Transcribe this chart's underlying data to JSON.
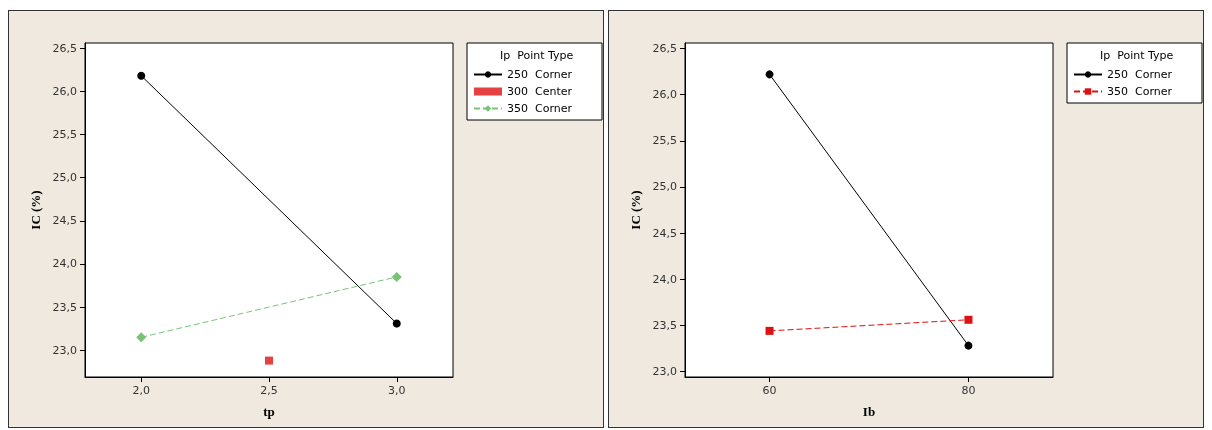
{
  "chart_data": [
    {
      "type": "line",
      "xlabel": "tp",
      "ylabel": "IC (%)",
      "legend_title": "Ip  Point Type",
      "legend": "top right",
      "grid": false,
      "xlim": [
        1.78,
        3.22
      ],
      "xticks": [
        {
          "value": 2.0,
          "label": "2,0"
        },
        {
          "value": 2.5,
          "label": "2,5"
        },
        {
          "value": 3.0,
          "label": "3,0"
        }
      ],
      "ylim": [
        22.69,
        26.56
      ],
      "yticks": [
        {
          "value": 23.0,
          "label": "23,0"
        },
        {
          "value": 23.5,
          "label": "23,5"
        },
        {
          "value": 24.0,
          "label": "24,0"
        },
        {
          "value": 24.5,
          "label": "24,5"
        },
        {
          "value": 25.0,
          "label": "25,0"
        },
        {
          "value": 25.5,
          "label": "25,5"
        },
        {
          "value": 26.0,
          "label": "26,0"
        },
        {
          "value": 26.5,
          "label": "26,5"
        }
      ],
      "series": [
        {
          "name": "250  Corner",
          "color": "#000000",
          "marker": "circle",
          "line_style": "solid",
          "x": [
            2.0,
            3.0
          ],
          "values": [
            26.18,
            23.31
          ]
        },
        {
          "name": "300  Center",
          "type": "scatter",
          "color": "#dd1111",
          "marker": "square",
          "x": [
            2.5
          ],
          "values": [
            22.88
          ]
        },
        {
          "name": "350  Corner",
          "color": "#77c477",
          "marker": "diamond",
          "line_style": "dashed",
          "x": [
            2.0,
            3.0
          ],
          "values": [
            23.15,
            23.85
          ]
        }
      ]
    },
    {
      "type": "line",
      "xlabel": "Ib",
      "ylabel": "IC (%)",
      "legend_title": "Ip  Point Type",
      "legend": "top right",
      "grid": false,
      "xlim": [
        51.5,
        88.5
      ],
      "xticks": [
        60,
        80
      ],
      "ylim": [
        22.94,
        26.56
      ],
      "yticks": [
        {
          "value": 23.0,
          "label": "23,0"
        },
        {
          "value": 23.5,
          "label": "23,5"
        },
        {
          "value": 24.0,
          "label": "24,0"
        },
        {
          "value": 24.5,
          "label": "24,5"
        },
        {
          "value": 25.0,
          "label": "25,0"
        },
        {
          "value": 25.5,
          "label": "25,5"
        },
        {
          "value": 26.0,
          "label": "26,0"
        },
        {
          "value": 26.5,
          "label": "26,5"
        }
      ],
      "series": [
        {
          "name": "250  Corner",
          "color": "#000000",
          "marker": "circle",
          "line_style": "solid",
          "x": [
            60,
            80
          ],
          "values": [
            26.22,
            23.28
          ]
        },
        {
          "name": "350  Corner",
          "color": "#dd1111",
          "marker": "square",
          "line_style": "dashed",
          "x": [
            60,
            80
          ],
          "values": [
            23.44,
            23.56
          ]
        }
      ]
    }
  ]
}
